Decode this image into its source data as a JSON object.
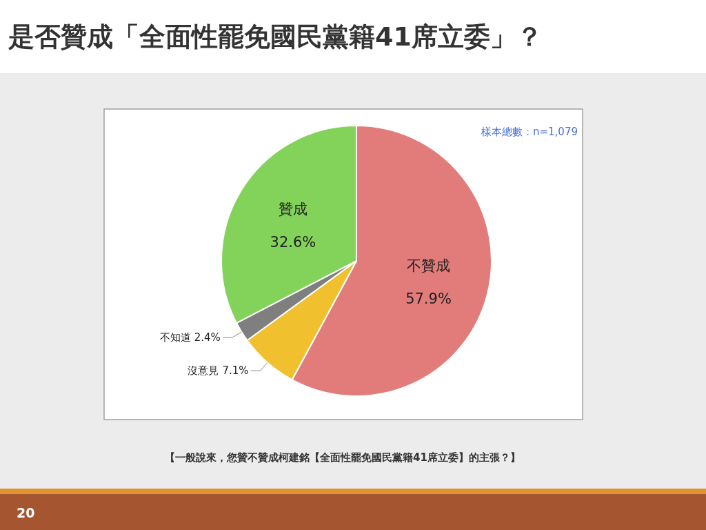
{
  "chart_data": {
    "type": "pie",
    "title": "是否贊成「全面性罷免國民黨籍41席立委」？",
    "categories": [
      "不贊成",
      "沒意見",
      "不知道",
      "贊成"
    ],
    "values": [
      57.9,
      7.1,
      2.4,
      32.6
    ],
    "colors": [
      "#e27c7a",
      "#f0c02f",
      "#7f7f7f",
      "#83d35b"
    ],
    "value_labels": [
      "57.9%",
      "7.1%",
      "2.4%",
      "32.6%"
    ],
    "annotations": [
      "樣本總數：n=1,079",
      "【一般說來，您贊不贊成柯建銘【全面性罷免國民黨籍41席立委】的主張？】",
      "20"
    ]
  }
}
